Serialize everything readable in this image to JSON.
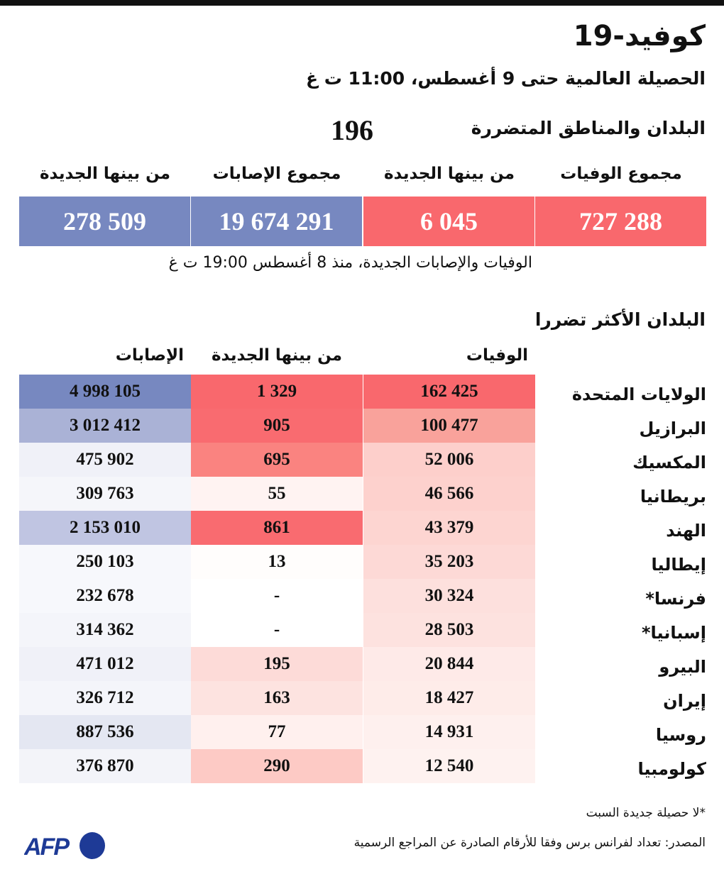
{
  "title": "كوفيد-19",
  "subtitle": "الحصيلة العالمية حتى 9 أغسطس، 11:00 ت غ",
  "countries_affected": {
    "label": "البلدان والمناطق المتضررة",
    "value": "196"
  },
  "kpis": [
    {
      "label": "مجموع الوفيات",
      "value": "727 288",
      "color": "#f9686d"
    },
    {
      "label": "من بينها الجديدة",
      "value": "6 045",
      "color": "#f9686d"
    },
    {
      "label": "مجموع الإصابات",
      "value": "19 674 291",
      "color": "#7788c0"
    },
    {
      "label": "من بينها الجديدة",
      "value": "278 509",
      "color": "#7788c0"
    }
  ],
  "since_note": "الوفيات والإصابات الجديدة، منذ 8 أغسطس 19:00 ت غ",
  "most_affected_label": "البلدان الأكثر تضررا",
  "chart_data": {
    "type": "table",
    "columns": [
      "الوفيات",
      "من بينها الجديدة",
      "الإصابات"
    ],
    "rows": [
      {
        "country": "الولايات المتحدة",
        "deaths": "162 425",
        "new": "1 329",
        "cases": "4 998 105",
        "c": [
          "#f9686d",
          "#f9686d",
          "#7788c0"
        ]
      },
      {
        "country": "البرازيل",
        "deaths": "100 477",
        "new": "905",
        "cases": "3 012 412",
        "c": [
          "#f9a29b",
          "#f96b70",
          "#aab2d6"
        ]
      },
      {
        "country": "المكسيك",
        "deaths": "52 006",
        "new": "695",
        "cases": "475 902",
        "c": [
          "#fdcfcb",
          "#fa8380",
          "#f0f1f8"
        ]
      },
      {
        "country": "بريطانيا",
        "deaths": "46 566",
        "new": "55",
        "cases": "309 763",
        "c": [
          "#fdd1cd",
          "#fff3f2",
          "#f5f6fa"
        ]
      },
      {
        "country": "الهند",
        "deaths": "43 379",
        "new": "861",
        "cases": "2 153 010",
        "c": [
          "#fdd5d1",
          "#f96b70",
          "#c0c5e2"
        ]
      },
      {
        "country": "إيطاليا",
        "deaths": "35 203",
        "new": "13",
        "cases": "250 103",
        "c": [
          "#fdd9d6",
          "#fffdfc",
          "#f7f8fc"
        ]
      },
      {
        "country": "فرنسا*",
        "deaths": "30 324",
        "new": "-",
        "cases": "232 678",
        "c": [
          "#fde0dd",
          "#ffffff",
          "#f7f8fc"
        ]
      },
      {
        "country": "إسبانيا*",
        "deaths": "28 503",
        "new": "-",
        "cases": "314 362",
        "c": [
          "#fde2df",
          "#ffffff",
          "#f4f5fa"
        ]
      },
      {
        "country": "البيرو",
        "deaths": "20 844",
        "new": "195",
        "cases": "471 012",
        "c": [
          "#feeae8",
          "#fddbd8",
          "#f0f1f8"
        ]
      },
      {
        "country": "إيران",
        "deaths": "18 427",
        "new": "163",
        "cases": "326 712",
        "c": [
          "#feece9",
          "#fde3e0",
          "#f4f5fa"
        ]
      },
      {
        "country": "روسيا",
        "deaths": "14 931",
        "new": "77",
        "cases": "887 536",
        "c": [
          "#fef0ee",
          "#fff0ee",
          "#e4e7f2"
        ]
      },
      {
        "country": "كولومبيا",
        "deaths": "12 540",
        "new": "290",
        "cases": "376 870",
        "c": [
          "#fef2f0",
          "#fdcac5",
          "#f3f4f9"
        ]
      }
    ]
  },
  "footnote": "*لا حصيلة جديدة السبت",
  "source": "المصدر: تعداد لفرانس برس وفقا للأرقام الصادرة عن المراجع الرسمية",
  "logo": {
    "text": "AFP",
    "color": "#1e3a96"
  }
}
